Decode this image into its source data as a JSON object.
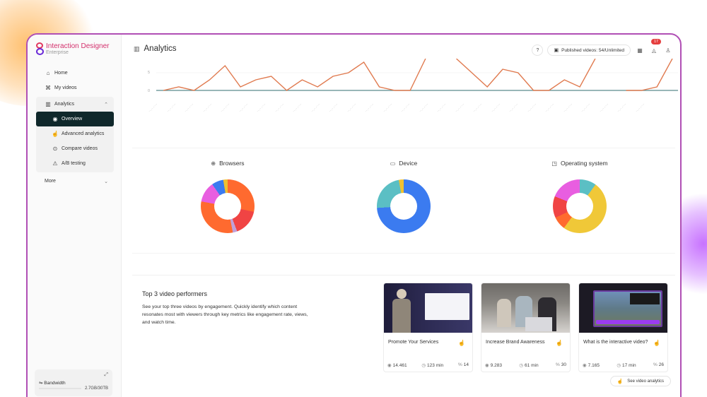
{
  "app": {
    "brand_name": "Interaction Designer",
    "brand_sub": "Enterprise"
  },
  "sidebar": {
    "items": [
      {
        "label": "Home",
        "icon": "home-icon"
      },
      {
        "label": "My videos",
        "icon": "video-icon"
      },
      {
        "label": "Analytics",
        "icon": "analytics-icon",
        "expanded": true
      },
      {
        "label": "More",
        "icon": "",
        "expanded": false
      }
    ],
    "analytics_sub": [
      {
        "label": "Overview",
        "icon": "overview-icon",
        "active": true
      },
      {
        "label": "Advanced analytics",
        "icon": "advanced-analytics-icon"
      },
      {
        "label": "Compare videos",
        "icon": "compare-icon"
      },
      {
        "label": "A/B testing",
        "icon": "ab-testing-icon"
      }
    ],
    "bandwidth": {
      "label": "Bandwidth",
      "value": "2.7GB/30TB"
    }
  },
  "header": {
    "title": "Analytics",
    "help": "?",
    "published_videos": "Published videos: 54/Unlimited",
    "notification_count": "17"
  },
  "chart_data": [
    {
      "type": "line",
      "title": "",
      "y_ticks": [
        "0",
        "5"
      ],
      "x_labels_note": "28 rotated date labels (DD.MM.YYYY), not legible",
      "series": [
        {
          "name": "views",
          "color": "#e07a4f",
          "values": [
            0,
            1,
            0,
            3,
            7,
            1,
            3,
            4,
            0,
            3,
            1,
            4,
            5,
            8,
            1,
            0,
            0,
            9,
            null,
            9,
            5,
            1,
            6,
            5,
            0,
            0,
            3,
            1,
            9,
            null,
            0,
            0,
            1,
            9
          ]
        }
      ],
      "ylim": [
        0,
        9
      ]
    },
    {
      "type": "pie",
      "title": "Browsers",
      "slices": [
        {
          "color": "#ff6a2f",
          "value": 32
        },
        {
          "color": "#f04444",
          "value": 18
        },
        {
          "color": "#c0a0d8",
          "value": 3
        },
        {
          "color": "#ff6a2f",
          "value": 35
        },
        {
          "color": "#e85ee0",
          "value": 14
        },
        {
          "color": "#3b7bf0",
          "value": 8
        },
        {
          "color": "#f0c030",
          "value": 3
        }
      ]
    },
    {
      "type": "pie",
      "title": "Device",
      "slices": [
        {
          "color": "#3b7bf0",
          "value": 74
        },
        {
          "color": "#5bbfc4",
          "value": 23
        },
        {
          "color": "#f0c030",
          "value": 3
        }
      ]
    },
    {
      "type": "pie",
      "title": "Operating system",
      "slices": [
        {
          "color": "#5bbfc4",
          "value": 10
        },
        {
          "color": "#f0c838",
          "value": 50
        },
        {
          "color": "#ff6a2f",
          "value": 8
        },
        {
          "color": "#f04444",
          "value": 13
        },
        {
          "color": "#e85ee0",
          "value": 19
        }
      ]
    }
  ],
  "performers": {
    "title": "Top 3 video performers",
    "description": "See your top three videos by engagement. Quickly identify which content resonates most with viewers through key metrics like engagement rate, views, and watch time.",
    "see_button": "See video analytics",
    "videos": [
      {
        "title": "Promote Your Services",
        "views": "14.461",
        "time": "123 min",
        "engagement": "14"
      },
      {
        "title": "Increase Brand Awareness",
        "views": "9.283",
        "time": "61 min",
        "engagement": "30"
      },
      {
        "title": "What is the interactive video?",
        "views": "7.165",
        "time": "17 min",
        "engagement": "26"
      }
    ]
  }
}
